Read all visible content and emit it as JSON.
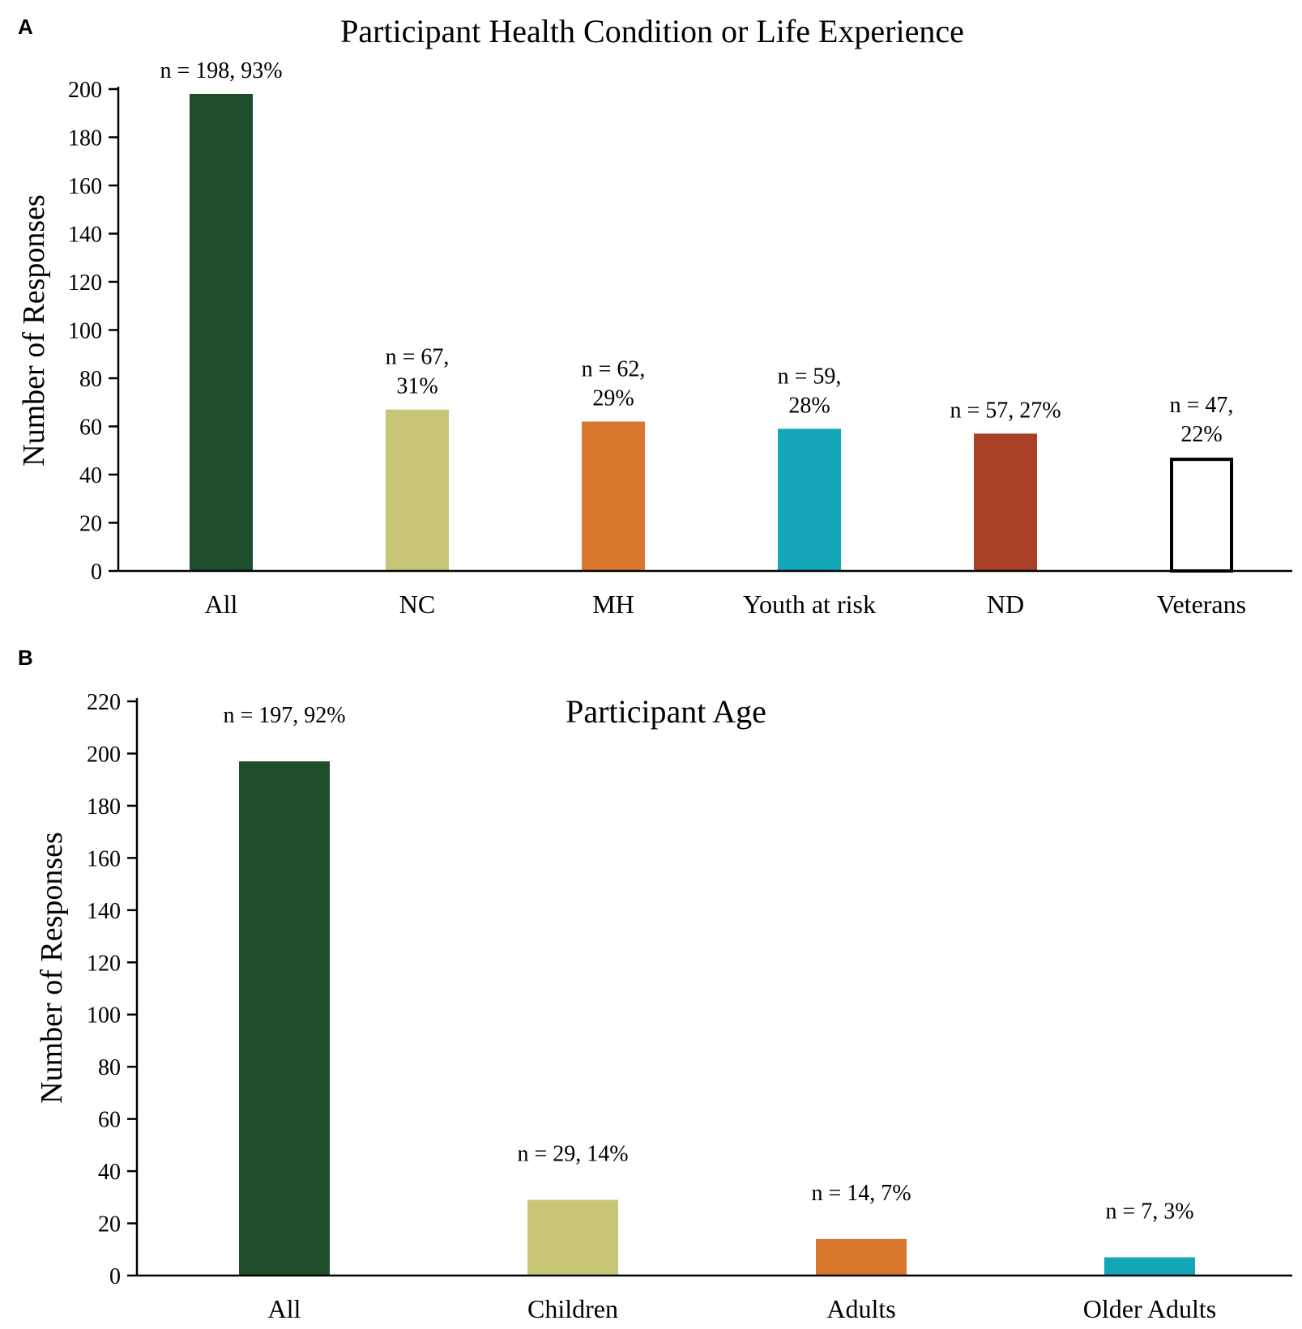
{
  "chart_data": [
    {
      "panel": "A",
      "type": "bar",
      "title": "Participant Health Condition or Life Experience",
      "xlabel": "",
      "ylabel": "Number of Responses",
      "ylim": [
        0,
        200
      ],
      "yticks": [
        0,
        20,
        40,
        60,
        80,
        100,
        120,
        140,
        160,
        180,
        200
      ],
      "categories": [
        "All",
        "NC",
        "MH",
        "Youth at risk",
        "ND",
        "Veterans"
      ],
      "values": [
        198,
        67,
        62,
        59,
        57,
        47
      ],
      "data_labels": [
        [
          "n = 198, 93%"
        ],
        [
          "n = 67,",
          "31%"
        ],
        [
          "n = 62,",
          "29%"
        ],
        [
          "n = 59,",
          "28%"
        ],
        [
          "n = 57, 27%"
        ],
        [
          "n = 47,",
          "22%"
        ]
      ],
      "colors": [
        "#1f4e2c",
        "#c9c577",
        "#d9772e",
        "#13a6b7",
        "#a84126",
        "#ffffff"
      ],
      "outline": [
        "none",
        "none",
        "none",
        "none",
        "none",
        "#000000"
      ]
    },
    {
      "panel": "B",
      "type": "bar",
      "title": "Participant Age",
      "xlabel": "",
      "ylabel": "Number of Responses",
      "ylim": [
        0,
        220
      ],
      "yticks": [
        0,
        20,
        40,
        60,
        80,
        100,
        120,
        140,
        160,
        180,
        200,
        220
      ],
      "categories": [
        "All",
        "Children",
        "Adults",
        "Older Adults"
      ],
      "values": [
        197,
        29,
        14,
        7
      ],
      "data_labels": [
        [
          "n = 197, 92%"
        ],
        [
          "n = 29, 14%"
        ],
        [
          "n = 14, 7%"
        ],
        [
          "n = 7, 3%"
        ]
      ],
      "colors": [
        "#1f4e2c",
        "#c9c577",
        "#d9772e",
        "#13a6b7"
      ],
      "outline": [
        "none",
        "none",
        "none",
        "none"
      ]
    }
  ]
}
